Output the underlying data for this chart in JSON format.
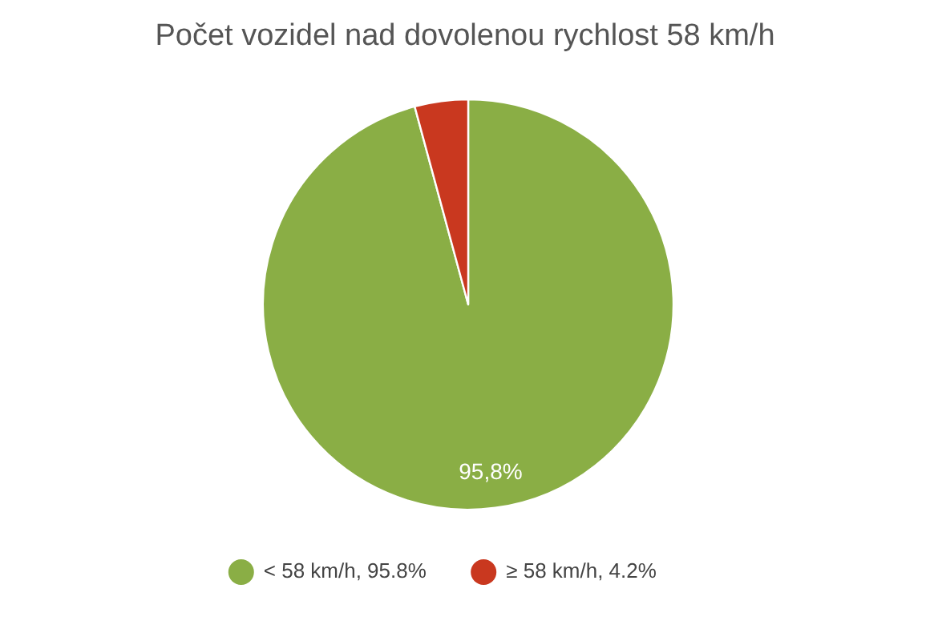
{
  "chart_data": {
    "type": "pie",
    "title": "Počet vozidel nad dovolenou rychlost 58 km/h",
    "categories": [
      "< 58 km/h, 95.8%",
      "≥ 58 km/h, 4.2%"
    ],
    "values": [
      95.8,
      4.2
    ],
    "colors": [
      "#8aae45",
      "#c9381f"
    ],
    "value_labels": [
      "95,8%",
      null
    ],
    "legend": "bottom"
  }
}
